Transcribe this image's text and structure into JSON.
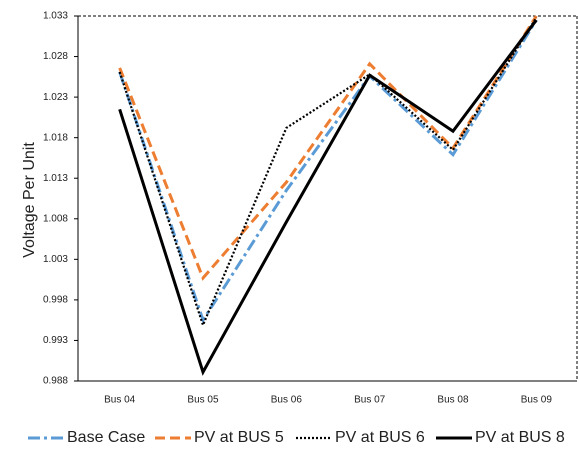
{
  "chart_data": {
    "type": "line",
    "y_label": "Voltage Per Unit",
    "categories": [
      "Bus 04",
      "Bus 05",
      "Bus 06",
      "Bus 07",
      "Bus 08",
      "Bus 09"
    ],
    "series": [
      {
        "name": "Base Case",
        "color": "#5b9bd5",
        "values": [
          1.0261,
          0.9955,
          1.0115,
          1.0256,
          1.0159,
          1.0325
        ]
      },
      {
        "name": "PV at BUS 5",
        "color": "#ed7d31",
        "values": [
          1.0266,
          1.0007,
          1.0125,
          1.0271,
          1.0167,
          1.033
        ]
      },
      {
        "name": "PV at BUS 6",
        "color": "#000000",
        "values": [
          1.0261,
          0.9949,
          1.0192,
          1.0258,
          1.0165,
          1.0328
        ]
      },
      {
        "name": "PV at BUS 8",
        "color": "#000000",
        "values": [
          1.0215,
          0.9891,
          1.0076,
          1.0257,
          1.0188,
          1.0325
        ]
      }
    ],
    "ylim": [
      0.988,
      1.033
    ],
    "yticks": [
      0.988,
      0.993,
      0.998,
      1.003,
      1.008,
      1.013,
      1.018,
      1.023,
      1.028,
      1.033
    ],
    "legend": "bottom"
  }
}
